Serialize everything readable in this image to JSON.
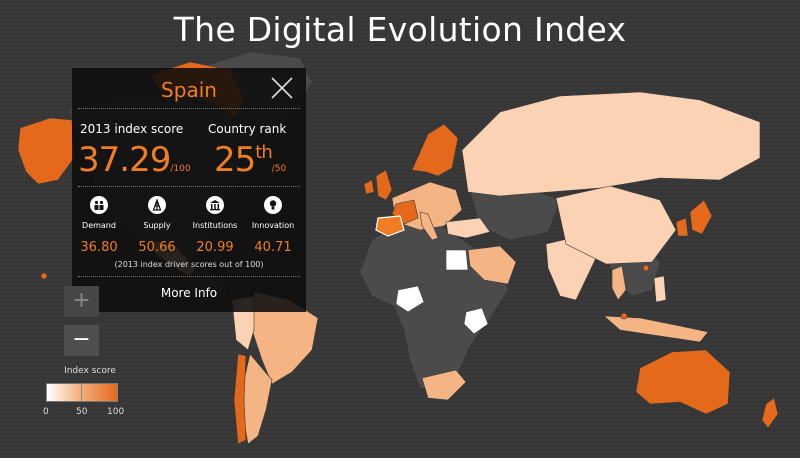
{
  "title": "The Digital Evolution Index",
  "colors": {
    "background": "#393939",
    "accent": "#f07d23",
    "no_data": "#4b4b4b",
    "score_high": "#e5691b",
    "score_mid": "#f4b483",
    "score_low": "#fbd2b4"
  },
  "panel": {
    "country": "Spain",
    "close_icon": "close-icon",
    "score_label": "2013 index score",
    "score_value": "37.29",
    "score_suffix": "/100",
    "rank_label": "Country rank",
    "rank_value": "25",
    "rank_ordinal": "th",
    "rank_suffix": "/50",
    "drivers": [
      {
        "name": "Demand",
        "value": "36.80",
        "icon": "people-icon"
      },
      {
        "name": "Supply",
        "value": "50.66",
        "icon": "tower-icon"
      },
      {
        "name": "Institutions",
        "value": "20.99",
        "icon": "building-icon"
      },
      {
        "name": "Innovation",
        "value": "40.71",
        "icon": "lightbulb-icon"
      }
    ],
    "note": "(2013 index driver scores out of 100)",
    "more_info": "More Info"
  },
  "zoom": {
    "in": "+",
    "out": "−"
  },
  "legend": {
    "title": "Index score",
    "ticks": [
      "0",
      "50",
      "100"
    ]
  }
}
